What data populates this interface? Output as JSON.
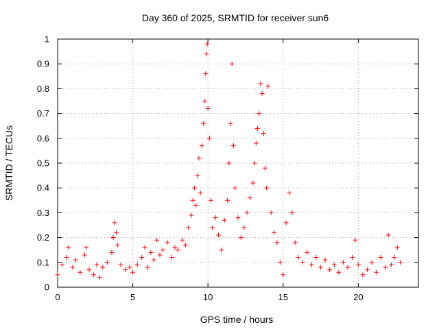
{
  "chart_data": {
    "type": "scatter",
    "title": "Day 360 of 2025, SRMTID for receiver sun6",
    "xlabel": "GPS time / hours",
    "ylabel": "SRMTID / TECUs",
    "xlim": [
      0,
      24
    ],
    "ylim": [
      0,
      1
    ],
    "x_ticks": [
      0,
      5,
      10,
      15,
      20
    ],
    "x_tick_labels": [
      "0",
      "5",
      "10",
      "15",
      "20"
    ],
    "y_ticks": [
      0,
      0.1,
      0.2,
      0.3,
      0.4,
      0.5,
      0.6,
      0.7,
      0.8,
      0.9,
      1
    ],
    "y_tick_labels": [
      "0",
      "0.1",
      "0.2",
      "0.3",
      "0.4",
      "0.5",
      "0.6",
      "0.7",
      "0.8",
      "0.9",
      "1"
    ],
    "grid": true,
    "marker": "+",
    "color": "#ff0000",
    "series": [
      {
        "name": "SRMTID",
        "x": [
          0.0,
          0.3,
          0.6,
          0.7,
          1.0,
          1.2,
          1.5,
          1.8,
          1.9,
          2.1,
          2.4,
          2.6,
          2.8,
          3.0,
          3.3,
          3.6,
          3.7,
          3.8,
          3.9,
          4.0,
          4.2,
          4.5,
          4.8,
          5.0,
          5.3,
          5.6,
          5.8,
          6.0,
          6.2,
          6.4,
          6.6,
          6.8,
          7.0,
          7.3,
          7.6,
          7.8,
          8.0,
          8.3,
          8.5,
          8.7,
          8.9,
          9.0,
          9.1,
          9.2,
          9.3,
          9.4,
          9.5,
          9.6,
          9.7,
          9.8,
          9.85,
          9.9,
          9.95,
          10.0,
          10.1,
          10.2,
          10.3,
          10.5,
          10.7,
          10.9,
          11.1,
          11.3,
          11.4,
          11.5,
          11.6,
          11.7,
          11.8,
          12.0,
          12.2,
          12.4,
          12.6,
          12.8,
          13.0,
          13.1,
          13.2,
          13.3,
          13.4,
          13.5,
          13.6,
          13.7,
          13.8,
          13.9,
          14.0,
          14.2,
          14.4,
          14.6,
          14.8,
          15.0,
          15.2,
          15.4,
          15.6,
          15.8,
          16.0,
          16.3,
          16.6,
          16.9,
          17.2,
          17.5,
          17.8,
          18.1,
          18.4,
          18.7,
          19.0,
          19.3,
          19.6,
          19.8,
          20.0,
          20.3,
          20.6,
          20.9,
          21.2,
          21.5,
          21.8,
          22.0,
          22.2,
          22.4,
          22.6,
          22.8
        ],
        "y": [
          0.05,
          0.09,
          0.12,
          0.16,
          0.08,
          0.11,
          0.06,
          0.13,
          0.16,
          0.07,
          0.05,
          0.09,
          0.04,
          0.08,
          0.1,
          0.14,
          0.2,
          0.26,
          0.22,
          0.17,
          0.09,
          0.07,
          0.08,
          0.06,
          0.09,
          0.12,
          0.16,
          0.08,
          0.14,
          0.11,
          0.19,
          0.13,
          0.15,
          0.18,
          0.12,
          0.16,
          0.15,
          0.19,
          0.17,
          0.24,
          0.29,
          0.35,
          0.4,
          0.33,
          0.45,
          0.52,
          0.38,
          0.57,
          0.66,
          0.75,
          0.86,
          0.94,
          0.98,
          0.72,
          0.6,
          0.35,
          0.24,
          0.28,
          0.21,
          0.15,
          0.27,
          0.35,
          0.5,
          0.66,
          0.9,
          0.57,
          0.4,
          0.28,
          0.2,
          0.24,
          0.3,
          0.36,
          0.42,
          0.5,
          0.58,
          0.64,
          0.7,
          0.82,
          0.78,
          0.62,
          0.48,
          0.4,
          0.81,
          0.3,
          0.22,
          0.18,
          0.1,
          0.05,
          0.26,
          0.38,
          0.3,
          0.18,
          0.12,
          0.1,
          0.14,
          0.09,
          0.12,
          0.08,
          0.11,
          0.07,
          0.09,
          0.06,
          0.1,
          0.08,
          0.12,
          0.19,
          0.09,
          0.05,
          0.07,
          0.1,
          0.06,
          0.12,
          0.08,
          0.21,
          0.09,
          0.12,
          0.16,
          0.1
        ]
      }
    ]
  }
}
